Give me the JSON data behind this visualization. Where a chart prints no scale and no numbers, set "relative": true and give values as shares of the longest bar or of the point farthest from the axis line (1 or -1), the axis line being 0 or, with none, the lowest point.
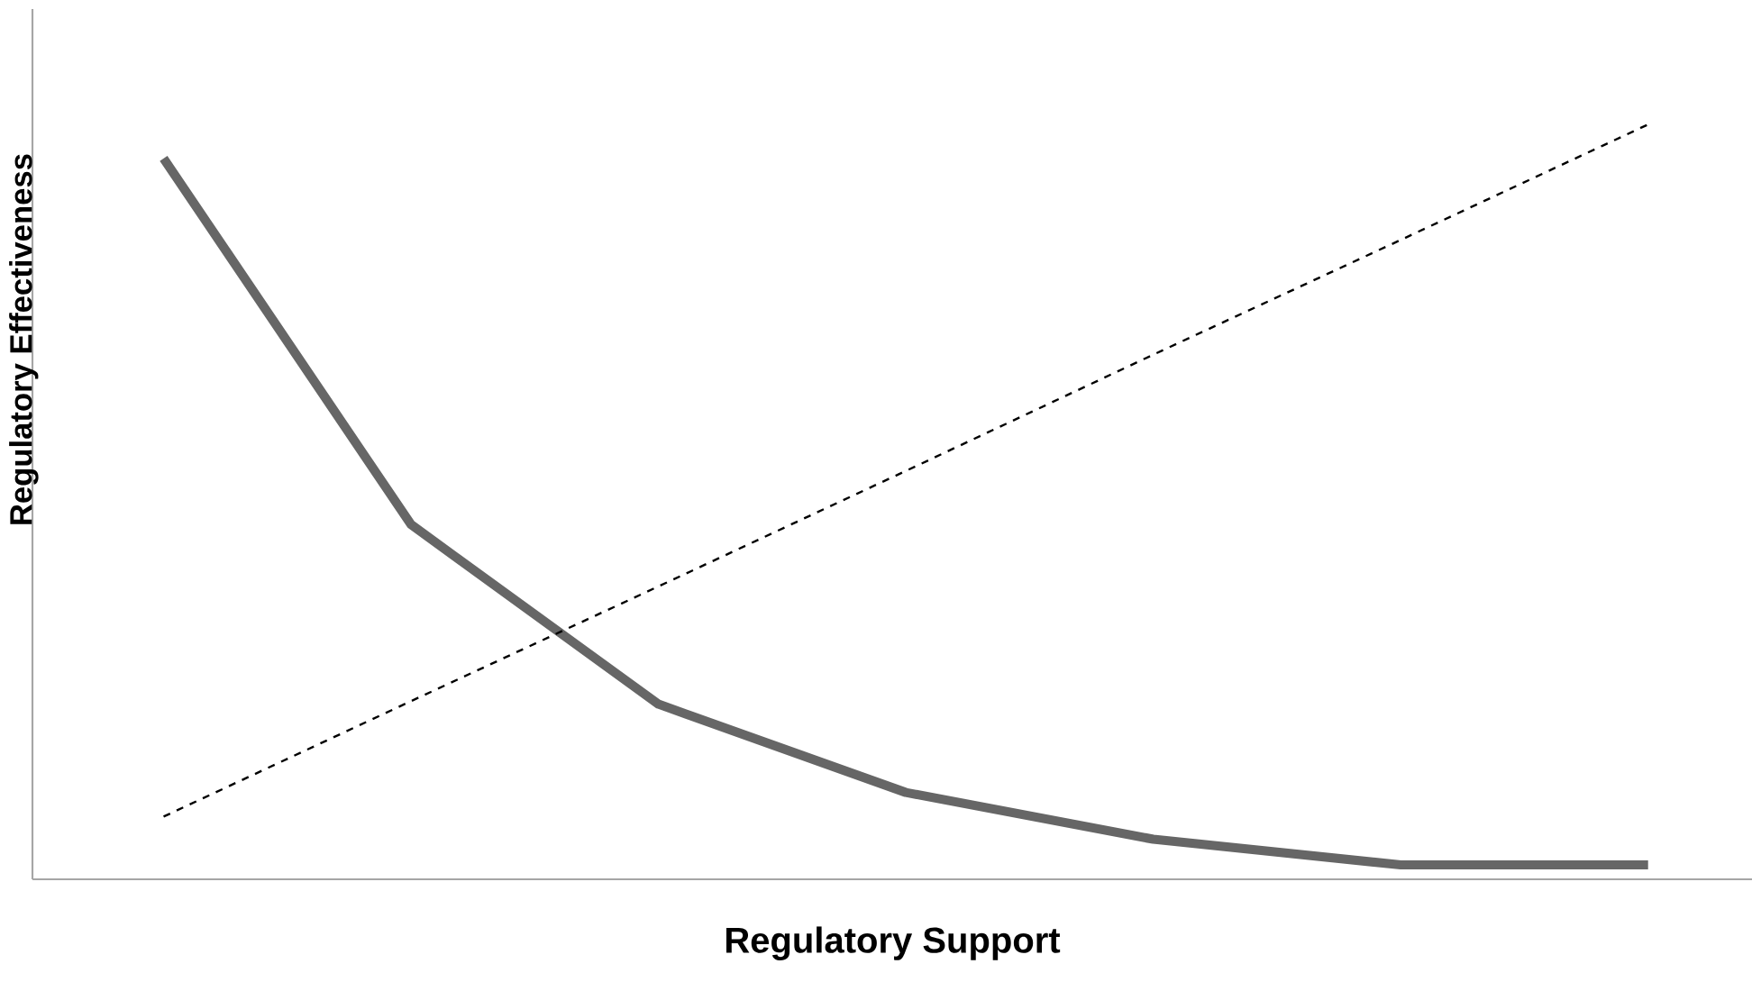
{
  "chart_data": {
    "type": "line",
    "relative": true,
    "xlabel": "Regulatory Support",
    "ylabel": "Regulatory Effectiveness",
    "categories": [
      null,
      null,
      null,
      null,
      null,
      null,
      null
    ],
    "series": [
      {
        "color": "#666666",
        "line_style": "solid",
        "values": [
          0.955,
          0.47,
          0.232,
          0.115,
          0.053,
          0.019,
          0.019
        ]
      },
      {
        "color": "#000000",
        "line_style": "dashed",
        "values": [
          0.083,
          0.236,
          0.388,
          0.541,
          0.695,
          0.847,
          1.0
        ]
      }
    ],
    "marker": "none"
  }
}
